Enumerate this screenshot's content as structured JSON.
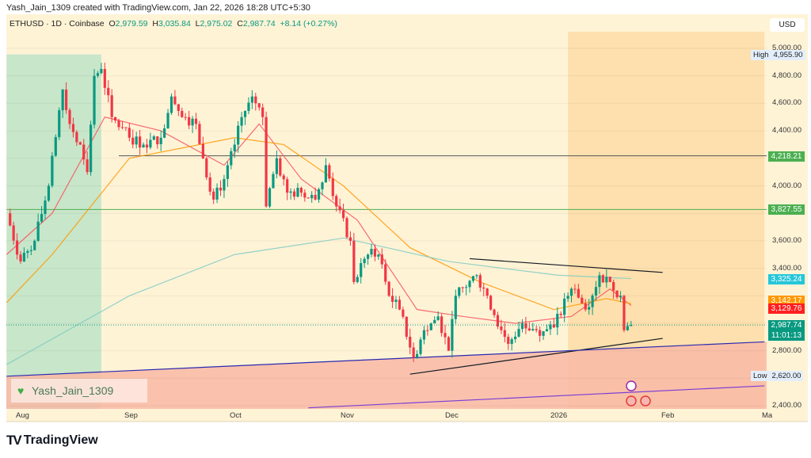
{
  "header": {
    "credit": "Yash_Jain_1309 created with TradingView.com, Jan 22, 2026 18:28 UTC+5:30"
  },
  "legend": {
    "symbol": "ETHUSD · 1D · Coinbase",
    "o_label": "O",
    "o": "2,979.59",
    "h_label": "H",
    "h": "3,035.84",
    "l_label": "L",
    "l": "2,975.02",
    "c_label": "C",
    "c": "2,987.74",
    "change": "+8.14 (+0.27%)"
  },
  "price_axis": {
    "currency": "USD",
    "ticks": [
      "5,000.00",
      "4,800.00",
      "4,600.00",
      "4,400.00",
      "4,000.00",
      "3,600.00",
      "3,400.00",
      "2,800.00",
      "2,400.00"
    ],
    "high_label": "High",
    "high": "4,955.90",
    "low_label": "Low",
    "low": "2,620.00",
    "tags": [
      {
        "text": "4,218.21",
        "color": "#4caf50"
      },
      {
        "text": "3,827.55",
        "color": "#4caf50"
      },
      {
        "text": "3,325.24",
        "color": "#26c6da"
      },
      {
        "text": "3,142.17",
        "color": "#ff9800"
      },
      {
        "text": "3,129.76",
        "color": "#ff1f1f"
      },
      {
        "text": "2,987.74",
        "color": "#089981"
      }
    ],
    "countdown": "11:01:13"
  },
  "time_axis": {
    "ticks": [
      "Aug",
      "Sep",
      "Oct",
      "Nov",
      "Dec",
      "2026",
      "Feb",
      "Ma"
    ]
  },
  "watermark": "Yash_Jain_1309",
  "brand": "TradingView",
  "colors": {
    "up": "#089981",
    "down": "#f23645",
    "ema_short": "#f7525f",
    "ema_mid": "#ff9800",
    "sma_long": "#80cbc4",
    "orange_zone": "#fde0ad",
    "green_zone": "#c8e6c9",
    "red_zone": "#f9b9a6"
  },
  "chart_data": {
    "type": "candlestick",
    "symbol": "ETHUSD",
    "interval": "1D",
    "exchange": "Coinbase",
    "ylim": [
      2350,
      5050
    ],
    "closes": [
      [
        "2025-07-28",
        3800
      ],
      [
        "2025-08-01",
        3450
      ],
      [
        "2025-08-05",
        3600
      ],
      [
        "2025-08-09",
        4000
      ],
      [
        "2025-08-13",
        4700
      ],
      [
        "2025-08-15",
        4450
      ],
      [
        "2025-08-18",
        4300
      ],
      [
        "2025-08-20",
        4100
      ],
      [
        "2025-08-22",
        4800
      ],
      [
        "2025-08-24",
        4850
      ],
      [
        "2025-08-27",
        4500
      ],
      [
        "2025-09-01",
        4350
      ],
      [
        "2025-09-05",
        4300
      ],
      [
        "2025-09-10",
        4350
      ],
      [
        "2025-09-13",
        4650
      ],
      [
        "2025-09-17",
        4500
      ],
      [
        "2025-09-20",
        4450
      ],
      [
        "2025-09-22",
        4200
      ],
      [
        "2025-09-25",
        3900
      ],
      [
        "2025-09-28",
        4050
      ],
      [
        "2025-10-01",
        4300
      ],
      [
        "2025-10-03",
        4500
      ],
      [
        "2025-10-06",
        4650
      ],
      [
        "2025-10-09",
        4500
      ],
      [
        "2025-10-10",
        3850
      ],
      [
        "2025-10-13",
        4200
      ],
      [
        "2025-10-16",
        3950
      ],
      [
        "2025-10-20",
        3950
      ],
      [
        "2025-10-24",
        3900
      ],
      [
        "2025-10-27",
        4150
      ],
      [
        "2025-10-30",
        3850
      ],
      [
        "2025-11-03",
        3600
      ],
      [
        "2025-11-04",
        3300
      ],
      [
        "2025-11-08",
        3500
      ],
      [
        "2025-11-11",
        3500
      ],
      [
        "2025-11-14",
        3200
      ],
      [
        "2025-11-17",
        3100
      ],
      [
        "2025-11-21",
        2750
      ],
      [
        "2025-11-24",
        2950
      ],
      [
        "2025-11-28",
        3050
      ],
      [
        "2025-12-01",
        2800
      ],
      [
        "2025-12-03",
        3200
      ],
      [
        "2025-12-09",
        3350
      ],
      [
        "2025-12-12",
        3200
      ],
      [
        "2025-12-16",
        2950
      ],
      [
        "2025-12-18",
        2850
      ],
      [
        "2025-12-22",
        3000
      ],
      [
        "2025-12-26",
        2950
      ],
      [
        "2025-12-31",
        2970
      ],
      [
        "2026-01-04",
        3200
      ],
      [
        "2026-01-06",
        3250
      ],
      [
        "2026-01-09",
        3100
      ],
      [
        "2026-01-13",
        3350
      ],
      [
        "2026-01-16",
        3300
      ],
      [
        "2026-01-19",
        3200
      ],
      [
        "2026-01-20",
        2950
      ],
      [
        "2026-01-21",
        2980
      ],
      [
        "2026-01-22",
        2987.74
      ]
    ],
    "indicators": [
      {
        "color": "#f7525f",
        "points": [
          [
            "2025-07-28",
            3500
          ],
          [
            "2025-08-10",
            3800
          ],
          [
            "2025-08-25",
            4500
          ],
          [
            "2025-09-10",
            4400
          ],
          [
            "2025-09-28",
            4150
          ],
          [
            "2025-10-08",
            4450
          ],
          [
            "2025-10-20",
            4050
          ],
          [
            "2025-11-05",
            3750
          ],
          [
            "2025-11-22",
            3100
          ],
          [
            "2025-12-05",
            3050
          ],
          [
            "2025-12-20",
            3000
          ],
          [
            "2026-01-05",
            3050
          ],
          [
            "2026-01-16",
            3250
          ],
          [
            "2026-01-22",
            3129.76
          ]
        ]
      },
      {
        "color": "#ff9800",
        "points": [
          [
            "2025-07-28",
            3150
          ],
          [
            "2025-08-10",
            3500
          ],
          [
            "2025-09-01",
            4200
          ],
          [
            "2025-10-01",
            4350
          ],
          [
            "2025-10-15",
            4300
          ],
          [
            "2025-11-01",
            4000
          ],
          [
            "2025-11-20",
            3550
          ],
          [
            "2025-12-10",
            3300
          ],
          [
            "2025-12-31",
            3100
          ],
          [
            "2026-01-15",
            3180
          ],
          [
            "2026-01-22",
            3142.17
          ]
        ]
      },
      {
        "color": "#80cbc4",
        "points": [
          [
            "2025-07-28",
            2700
          ],
          [
            "2025-09-01",
            3200
          ],
          [
            "2025-10-01",
            3500
          ],
          [
            "2025-11-01",
            3620
          ],
          [
            "2025-12-01",
            3450
          ],
          [
            "2026-01-01",
            3350
          ],
          [
            "2026-01-22",
            3325.24
          ]
        ]
      }
    ],
    "horizontal_lines": [
      {
        "price": 4218.21,
        "from": "2025-08-29",
        "color": "#555555"
      },
      {
        "price": 3827.55,
        "from": "2025-07-28",
        "color": "#4caf50"
      }
    ],
    "trendlines": [
      {
        "color": "#131722",
        "from": [
          "2025-12-07",
          3470
        ],
        "to": [
          "2026-01-31",
          3370
        ]
      },
      {
        "color": "#131722",
        "from": [
          "2025-11-20",
          2630
        ],
        "to": [
          "2026-01-31",
          2890
        ]
      },
      {
        "color": "#2a2ab0",
        "from": [
          "2025-07-28",
          2615
        ],
        "to": [
          "2026-03-01",
          2865
        ]
      },
      {
        "color": "#7b3fd4",
        "from": [
          "2025-10-22",
          2385
        ],
        "to": [
          "2026-03-01",
          2545
        ]
      }
    ],
    "zones": [
      {
        "color": "#c8e6c9",
        "from": "2025-07-28",
        "to": "2025-08-24",
        "top": 4955.9
      },
      {
        "color": "#fde0ad",
        "from": "2026-01-04",
        "to": "2026-03-01"
      }
    ]
  }
}
